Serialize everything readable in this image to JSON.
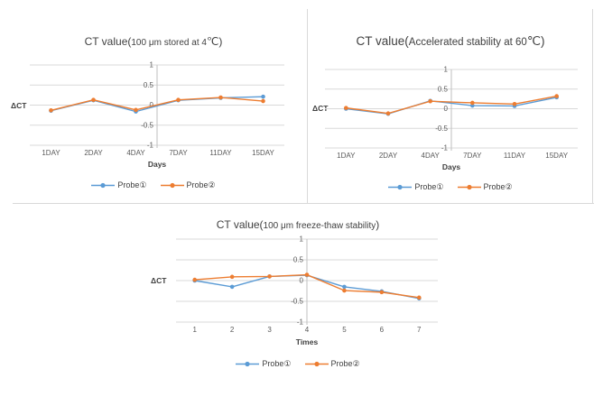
{
  "colors": {
    "probe1_blue": "#5B9BD5",
    "probe2_orange": "#ED7D31",
    "gridline": "#d9d9d9",
    "axis_line": "#bfbfbf",
    "tick_text": "#595959",
    "label_text": "#404040"
  },
  "chart_data": [
    {
      "type": "line",
      "title_prefix": "CT value(",
      "title_middle": "100 μm stored at 4",
      "title_suffix": "℃)",
      "xlabel": "Days",
      "ylabel": "ΔCT",
      "ylim": [
        -1,
        1
      ],
      "yticks": [
        1,
        0.5,
        0,
        -0.5,
        -1
      ],
      "grid": true,
      "legend_position": "bottom",
      "categories": [
        "1DAY",
        "2DAY",
        "4DAY",
        "7DAY",
        "11DAY",
        "15DAY"
      ],
      "series": [
        {
          "name": "Probe①",
          "color": "#5B9BD5",
          "values": [
            -0.14,
            0.12,
            -0.16,
            0.12,
            0.18,
            0.21
          ]
        },
        {
          "name": "Probe②",
          "color": "#ED7D31",
          "values": [
            -0.13,
            0.13,
            -0.12,
            0.13,
            0.19,
            0.1
          ]
        }
      ]
    },
    {
      "type": "line",
      "title_prefix": "CT value(",
      "title_middle": "Accelerated stability at 60",
      "title_suffix": "℃)",
      "xlabel": "Days",
      "ylabel": "ΔCT",
      "ylim": [
        -1,
        1
      ],
      "yticks": [
        1,
        0.5,
        0,
        -0.5,
        -1
      ],
      "grid": true,
      "legend_position": "bottom",
      "categories": [
        "1DAY",
        "2DAY",
        "4DAY",
        "7DAY",
        "11DAY",
        "15DAY"
      ],
      "series": [
        {
          "name": "Probe①",
          "color": "#5B9BD5",
          "values": [
            0.0,
            -0.13,
            0.2,
            0.08,
            0.07,
            0.29
          ]
        },
        {
          "name": "Probe②",
          "color": "#ED7D31",
          "values": [
            0.02,
            -0.12,
            0.19,
            0.15,
            0.12,
            0.32
          ]
        }
      ]
    },
    {
      "type": "line",
      "title_prefix": "CT value(",
      "title_middle": "100 μm freeze-thaw stability",
      "title_suffix": ")",
      "xlabel": "Times",
      "ylabel": "ΔCT",
      "ylim": [
        -1,
        1
      ],
      "yticks": [
        1,
        0.5,
        0,
        -0.5,
        -1
      ],
      "grid": true,
      "legend_position": "bottom",
      "categories": [
        "1",
        "2",
        "3",
        "4",
        "5",
        "6",
        "7"
      ],
      "series": [
        {
          "name": "Probe①",
          "color": "#5B9BD5",
          "values": [
            0.0,
            -0.15,
            0.1,
            0.13,
            -0.15,
            -0.26,
            -0.43
          ]
        },
        {
          "name": "Probe②",
          "color": "#ED7D31",
          "values": [
            0.02,
            0.09,
            0.1,
            0.14,
            -0.24,
            -0.28,
            -0.41
          ]
        }
      ]
    }
  ]
}
